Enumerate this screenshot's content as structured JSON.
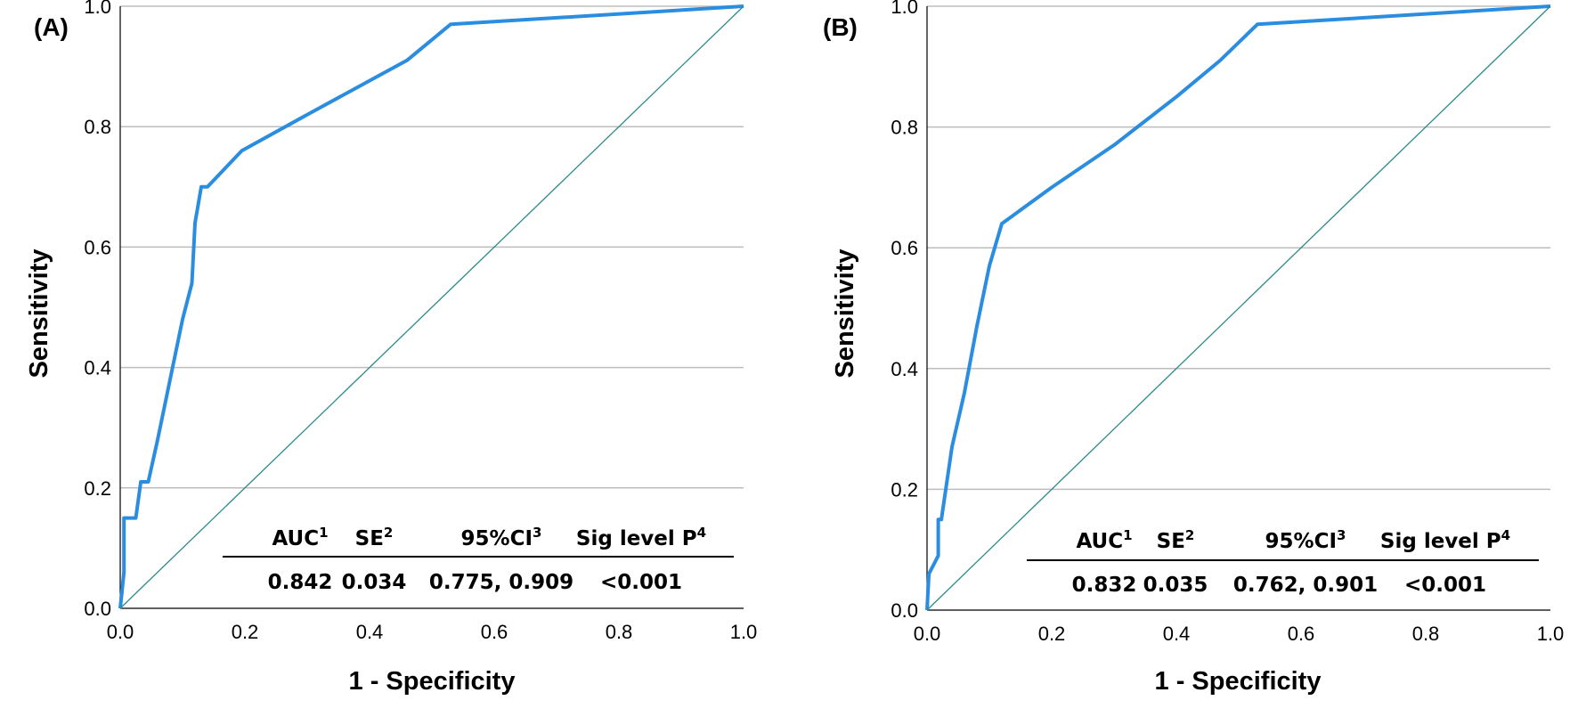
{
  "chart_data": [
    {
      "type": "line",
      "panel_label": "(A)",
      "xlabel": "1 - Specificity",
      "ylabel": "Sensitivity",
      "xlim": [
        0,
        1
      ],
      "ylim": [
        0,
        1
      ],
      "xticks": [
        "0.0",
        "0.2",
        "0.4",
        "0.6",
        "0.8",
        "1.0"
      ],
      "yticks": [
        "0.0",
        "0.2",
        "0.4",
        "0.6",
        "0.8",
        "1.0"
      ],
      "grid": "horizontal",
      "series": [
        {
          "name": "ROC",
          "x": [
            0,
            0.003,
            0.006,
            0.006,
            0.025,
            0.033,
            0.045,
            0.06,
            0.08,
            0.1,
            0.115,
            0.12,
            0.13,
            0.14,
            0.195,
            0.3,
            0.46,
            0.53,
            1.0
          ],
          "y": [
            0,
            0.03,
            0.06,
            0.15,
            0.15,
            0.21,
            0.21,
            0.28,
            0.38,
            0.48,
            0.54,
            0.64,
            0.7,
            0.7,
            0.76,
            0.82,
            0.91,
            0.97,
            1.0
          ]
        },
        {
          "name": "Reference",
          "x": [
            0,
            1
          ],
          "y": [
            0,
            1
          ]
        }
      ],
      "table": {
        "headers": [
          "AUC",
          "SE",
          "95%CI",
          "Sig level P"
        ],
        "superscripts": [
          "1",
          "2",
          "3",
          "4"
        ],
        "values": [
          "0.842",
          "0.034",
          "0.775, 0.909",
          "<0.001"
        ]
      }
    },
    {
      "type": "line",
      "panel_label": "(B)",
      "xlabel": "1 - Specificity",
      "ylabel": "Sensitivity",
      "xlim": [
        0,
        1
      ],
      "ylim": [
        0,
        1
      ],
      "xticks": [
        "0.0",
        "0.2",
        "0.4",
        "0.6",
        "0.8",
        "1.0"
      ],
      "yticks": [
        "0.0",
        "0.2",
        "0.4",
        "0.6",
        "0.8",
        "1.0"
      ],
      "grid": "horizontal",
      "series": [
        {
          "name": "ROC",
          "x": [
            0,
            0.003,
            0.018,
            0.018,
            0.023,
            0.04,
            0.06,
            0.08,
            0.1,
            0.12,
            0.2,
            0.3,
            0.4,
            0.47,
            0.53,
            1.0
          ],
          "y": [
            0,
            0.06,
            0.09,
            0.15,
            0.15,
            0.27,
            0.36,
            0.47,
            0.57,
            0.64,
            0.7,
            0.77,
            0.85,
            0.91,
            0.97,
            1.0
          ]
        },
        {
          "name": "Reference",
          "x": [
            0,
            1
          ],
          "y": [
            0,
            1
          ]
        }
      ],
      "table": {
        "headers": [
          "AUC",
          "SE",
          "95%CI",
          "Sig level P"
        ],
        "superscripts": [
          "1",
          "2",
          "3",
          "4"
        ],
        "values": [
          "0.832",
          "0.035",
          "0.762, 0.901",
          "<0.001"
        ]
      }
    }
  ],
  "colors": {
    "roc_line": "#2a8de0",
    "reference_line": "#2e8b8b",
    "grid": "#bdbdbd"
  }
}
